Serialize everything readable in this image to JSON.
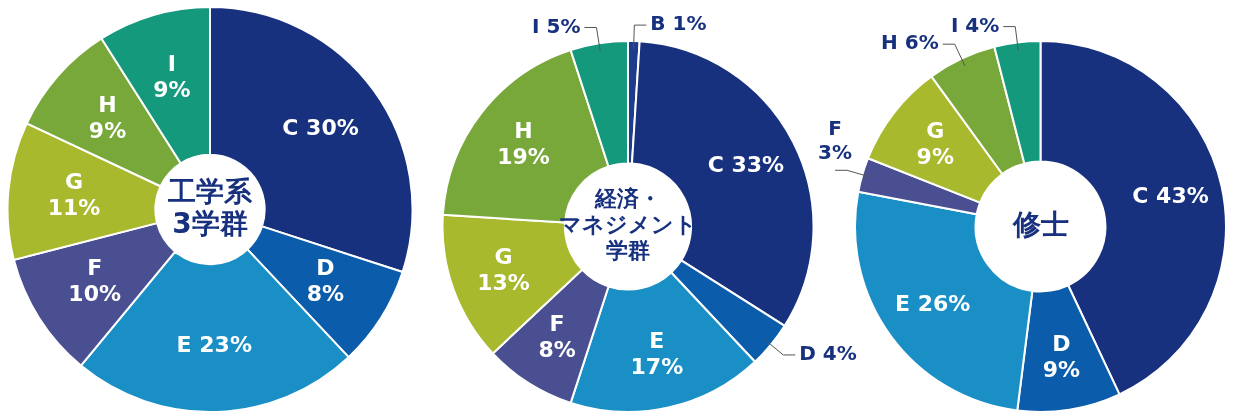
{
  "chart_data": [
    {
      "type": "donut",
      "title": "工学系3学群",
      "categories": [
        "C",
        "D",
        "E",
        "F",
        "G",
        "H",
        "I"
      ],
      "values": [
        30,
        8,
        23,
        10,
        11,
        9,
        9
      ],
      "value_labels": [
        "30%",
        "8%",
        "23%",
        "10%",
        "11%",
        "9%",
        "9%"
      ],
      "colors": [
        "#17317f",
        "#0b5cab",
        "#1a8fc6",
        "#4a4f91",
        "#a9b92d",
        "#79a83a",
        "#14997c"
      ],
      "legend": false
    },
    {
      "type": "donut",
      "title": "経済・マネジメント学群",
      "categories": [
        "B",
        "C",
        "D",
        "E",
        "F",
        "G",
        "H",
        "I"
      ],
      "values": [
        1,
        33,
        4,
        17,
        8,
        13,
        19,
        5
      ],
      "value_labels": [
        "1%",
        "33%",
        "4%",
        "17%",
        "8%",
        "13%",
        "19%",
        "5%"
      ],
      "colors": [
        "#1d3c8c",
        "#17317f",
        "#0b5cab",
        "#1a8fc6",
        "#4a4f91",
        "#a9b92d",
        "#79a83a",
        "#14997c"
      ],
      "legend": false
    },
    {
      "type": "donut",
      "title": "修士",
      "categories": [
        "C",
        "D",
        "E",
        "F",
        "G",
        "H",
        "I"
      ],
      "values": [
        43,
        9,
        26,
        3,
        9,
        6,
        4
      ],
      "value_labels": [
        "43%",
        "9%",
        "26%",
        "3%",
        "9%",
        "6%",
        "4%"
      ],
      "colors": [
        "#17317f",
        "#0b5cab",
        "#1a8fc6",
        "#4a4f91",
        "#a9b92d",
        "#79a83a",
        "#14997c"
      ],
      "legend": false
    }
  ]
}
